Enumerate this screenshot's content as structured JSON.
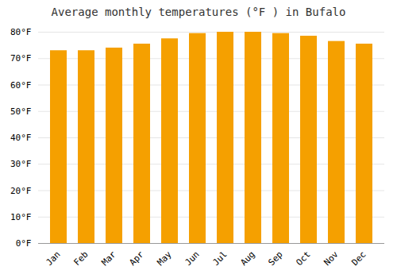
{
  "chart_data": {
    "type": "bar",
    "title": "Average monthly temperatures (°F ) in Bufalo",
    "categories": [
      "Jan",
      "Feb",
      "Mar",
      "Apr",
      "May",
      "Jun",
      "Jul",
      "Aug",
      "Sep",
      "Oct",
      "Nov",
      "Dec"
    ],
    "values": [
      73,
      73,
      74,
      75.5,
      77.5,
      79.5,
      80,
      80,
      79.5,
      78.5,
      76.5,
      75.5
    ],
    "color": "#F5A000",
    "ylim": [
      0,
      80
    ],
    "yticks": [
      {
        "value": 0,
        "label": "0°F"
      },
      {
        "value": 10,
        "label": "10°F"
      },
      {
        "value": 20,
        "label": "20°F"
      },
      {
        "value": 30,
        "label": "30°F"
      },
      {
        "value": 40,
        "label": "40°F"
      },
      {
        "value": 50,
        "label": "50°F"
      },
      {
        "value": 60,
        "label": "60°F"
      },
      {
        "value": 70,
        "label": "70°F"
      },
      {
        "value": 80,
        "label": "80°F"
      }
    ],
    "grid": true
  }
}
